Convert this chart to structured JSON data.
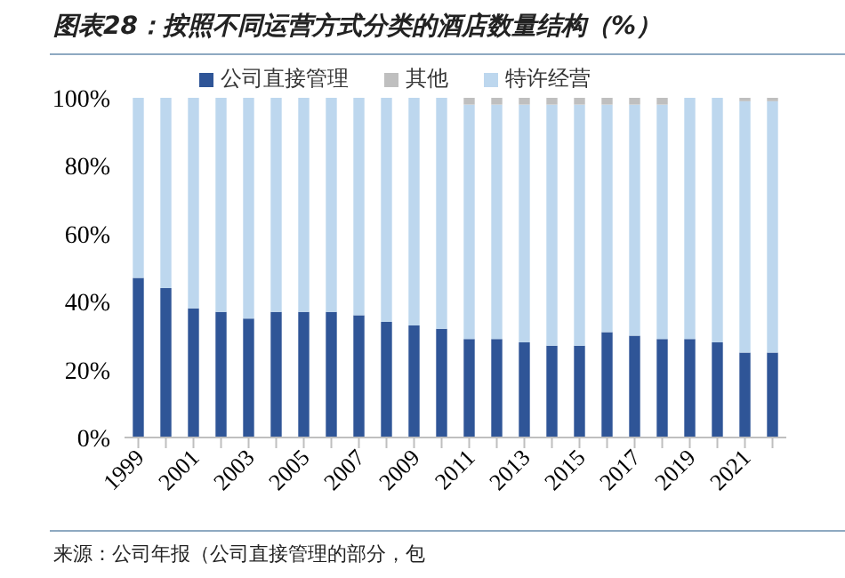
{
  "chart_data": {
    "type": "bar",
    "title": "图表28：按照不同运营方式分类的酒店数量结构（%）",
    "annotations": [
      "来源：公司年报（公司直接管理的部分，包"
    ],
    "categories": [
      "1999",
      null,
      "2001",
      null,
      "2003",
      null,
      "2005",
      null,
      "2007",
      null,
      "2009",
      null,
      "2011",
      null,
      "2013",
      null,
      "2015",
      null,
      "2017",
      null,
      "2019",
      null,
      "2021",
      null
    ],
    "stacked": true,
    "ylim": [
      0,
      100
    ],
    "yticks": [
      {
        "value": 0,
        "label": "0%"
      },
      {
        "value": 20,
        "label": "20%"
      },
      {
        "value": 40,
        "label": "40%"
      },
      {
        "value": 60,
        "label": "60%"
      },
      {
        "value": 80,
        "label": "80%"
      },
      {
        "value": 100,
        "label": "100%"
      }
    ],
    "grid": false,
    "legend": "top",
    "series": [
      {
        "name": "公司直接管理",
        "color": "#2f5597",
        "values": [
          47,
          44,
          38,
          37,
          35,
          37,
          37,
          37,
          36,
          34,
          33,
          32,
          29,
          29,
          28,
          27,
          27,
          31,
          30,
          29,
          29,
          28,
          25,
          25
        ]
      },
      {
        "name": "特许经营",
        "color": "#bdd7ee",
        "values": [
          53,
          56,
          62,
          63,
          65,
          63,
          63,
          63,
          64,
          66,
          67,
          68,
          69,
          69,
          70,
          71,
          71,
          67,
          68,
          69,
          71,
          72,
          74,
          74
        ]
      },
      {
        "name": "其他",
        "color": "#bfbfbf",
        "values": [
          0,
          0,
          0,
          0,
          0,
          0,
          0,
          0,
          0,
          0,
          0,
          0,
          2,
          2,
          2,
          2,
          2,
          2,
          2,
          2,
          0,
          0,
          1,
          1
        ]
      }
    ]
  }
}
